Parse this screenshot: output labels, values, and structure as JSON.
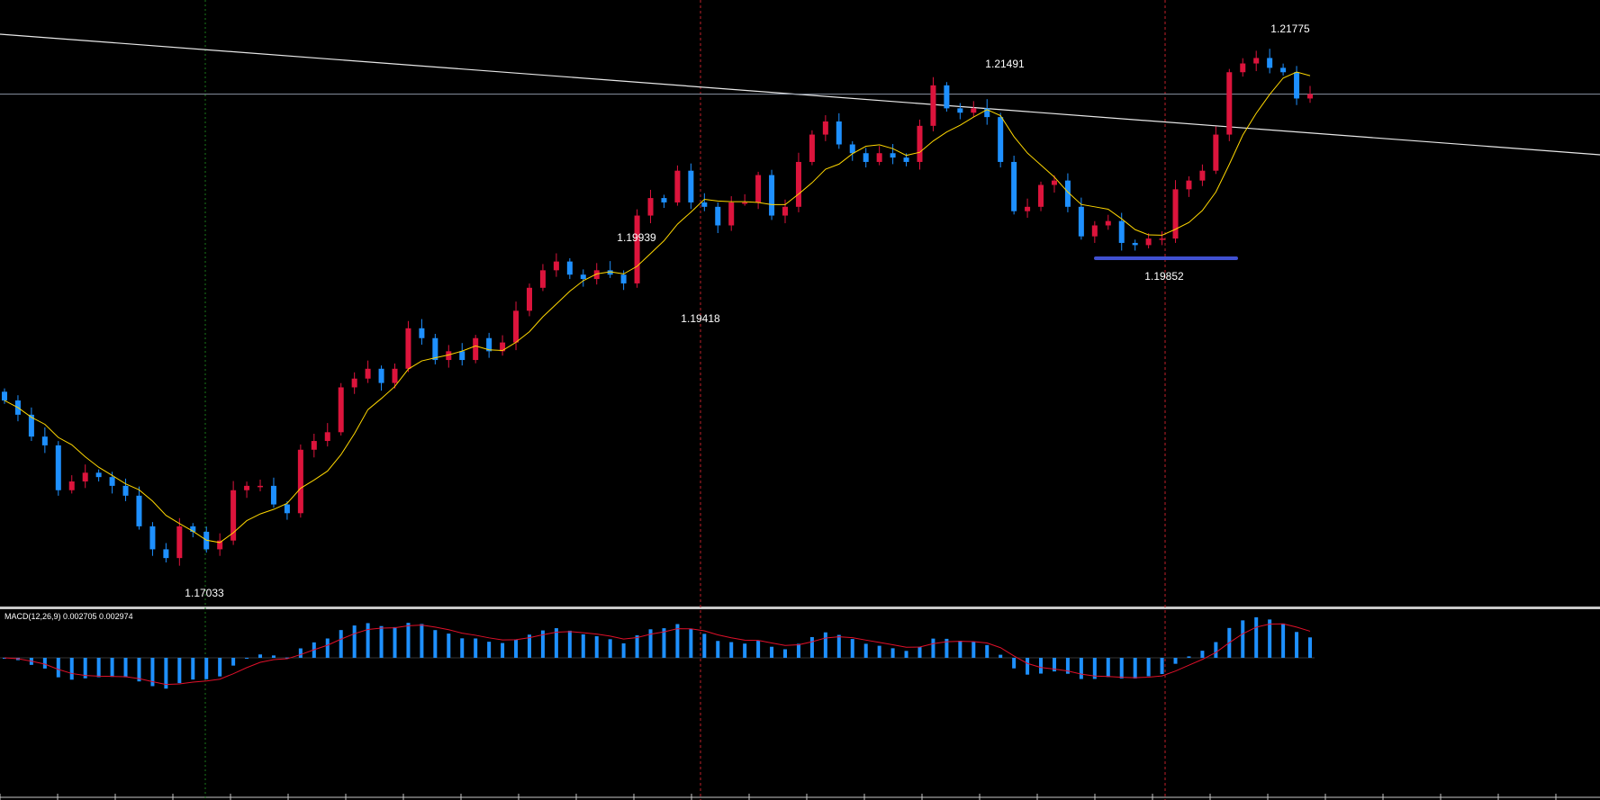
{
  "chart_data": {
    "type": "candlestick",
    "symbol_pane_indicator": "MACD(12,26,9) 0.002705 0.002974",
    "ylim": [
      1.167,
      1.2221
    ],
    "closes": [
      1.1855,
      1.1842,
      1.1822,
      1.1814,
      1.1773,
      1.1781,
      1.1789,
      1.1785,
      1.1777,
      1.1768,
      1.174,
      1.1719,
      1.1711,
      1.174,
      1.1735,
      1.1719,
      1.1727,
      1.1773,
      1.1777,
      1.1777,
      1.176,
      1.1752,
      1.181,
      1.1818,
      1.1826,
      1.1867,
      1.1875,
      1.1884,
      1.1871,
      1.1884,
      1.1921,
      1.1912,
      1.1892,
      1.19,
      1.1892,
      1.1912,
      1.19,
      1.1908,
      1.1937,
      1.1958,
      1.1974,
      1.1982,
      1.197,
      1.1966,
      1.1974,
      1.197,
      1.1962,
      1.2024,
      1.204,
      1.2036,
      1.2065,
      1.2036,
      1.2032,
      1.2015,
      1.2036,
      1.2036,
      1.2061,
      1.2024,
      1.2032,
      1.2073,
      1.2098,
      1.211,
      1.2089,
      1.2081,
      1.2073,
      1.2081,
      1.2077,
      1.2073,
      1.2106,
      1.2143,
      1.2122,
      1.2118,
      1.2122,
      1.2114,
      1.2073,
      1.2028,
      1.2032,
      1.2052,
      1.2056,
      1.2032,
      1.2005,
      1.2015,
      1.2019,
      1.1999,
      1.1997,
      1.2003,
      1.2003,
      1.2048,
      1.2056,
      1.2065,
      1.2098,
      1.2155,
      1.2163,
      1.2168,
      1.2159,
      1.2155,
      1.2131,
      1.2135
    ],
    "annotations": [
      {
        "text": "1.21775",
        "price": 1.21775
      },
      {
        "text": "1.21491",
        "price": 1.21491
      },
      {
        "text": "1.19939",
        "price": 1.19939
      },
      {
        "text": "1.19418",
        "price": 1.19418
      },
      {
        "text": "1.19852",
        "price": 1.19852
      },
      {
        "text": "1.17033",
        "price": 1.17033
      }
    ],
    "horizontal_line_price": 1.2135,
    "colors": {
      "bull": "#dc143c",
      "bear": "#1e90ff",
      "ma": "#ffd700",
      "signal": "#e0102a",
      "level": "#4050d0"
    }
  },
  "macd": {
    "label": "MACD(12,26,9) 0.002705 0.002974"
  }
}
